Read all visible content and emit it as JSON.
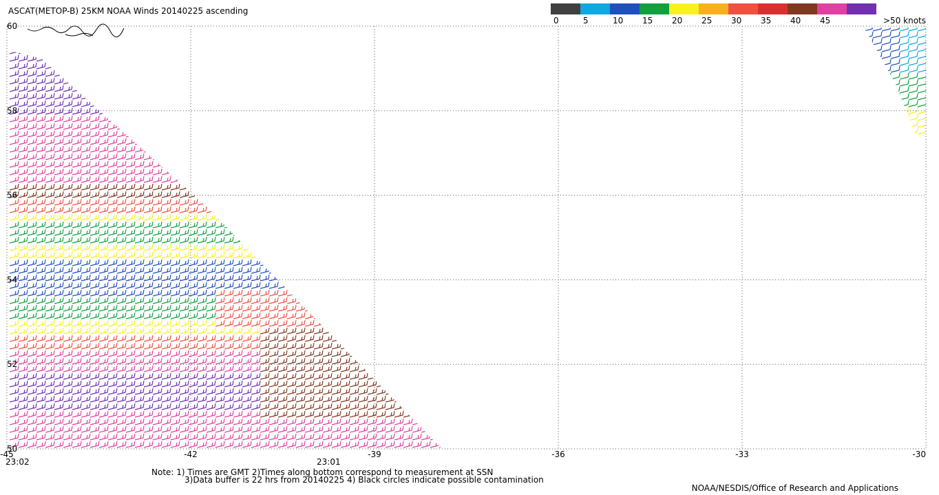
{
  "header": {
    "title": "ASCAT(METOP-B) 25KM NOAA Winds 20140225 ascending"
  },
  "color_scale": {
    "levels": [
      0,
      5,
      10,
      15,
      20,
      25,
      30,
      35,
      40,
      45
    ],
    "last_label": ">50 knots",
    "colors": [
      "#404040",
      "#10a8e0",
      "#2050c0",
      "#10a040",
      "#f8f020",
      "#f8b020",
      "#f05040",
      "#d83030",
      "#803820",
      "#e040a0",
      "#7030b0"
    ]
  },
  "map": {
    "xticks": [
      -45,
      -42,
      -39,
      -36,
      -33,
      -30
    ],
    "yticks": [
      60,
      58,
      56,
      54,
      52,
      50
    ],
    "xlim": [
      -45,
      -30
    ],
    "ylim": [
      50,
      60
    ],
    "grid": true,
    "time_labels": [
      {
        "lon": -45,
        "text": "23:02"
      },
      {
        "lon": -40,
        "text": "23:01"
      }
    ]
  },
  "notes": [
    "Note: 1) Times are GMT 2)Times along bottom correspond to measurement at SSN",
    "3)Data buffer is 22 hrs from 20140225 4) Black circles indicate possible contamination",
    "NOAA/NESDIS/Office of Research and Applications"
  ]
}
